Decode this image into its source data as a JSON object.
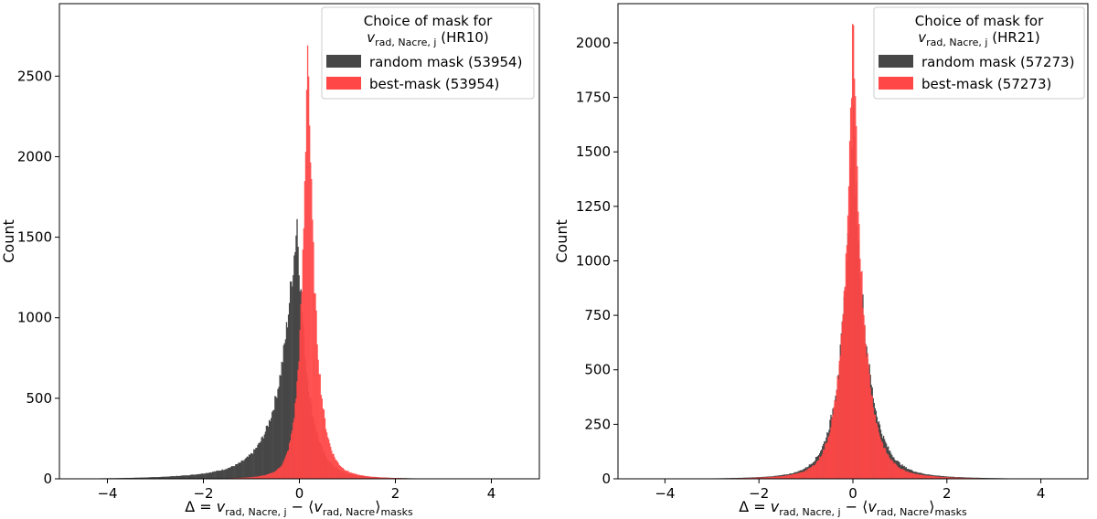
{
  "chart_data": [
    {
      "type": "histogram",
      "xlabel": "Δ = v_rad,Nacre,j − ⟨v_rad,Nacre⟩_masks",
      "ylabel": "Count",
      "xlim": [
        -5,
        5
      ],
      "ylim": [
        0,
        2950
      ],
      "xticks": [
        -4,
        -2,
        0,
        2,
        4
      ],
      "yticks": [
        0,
        500,
        1000,
        1500,
        2000,
        2500
      ],
      "legend": {
        "title_line1": "Choice of mask for",
        "title_line2_var": "v",
        "title_line2_sub": "rad, Nacre, j",
        "title_line2_suffix": "(HR10)",
        "placement": "top-right"
      },
      "series": [
        {
          "name": "random mask (53954)",
          "color": "#474747",
          "center": -0.05,
          "peak": 1610,
          "skew": "left",
          "width_left": 0.3,
          "width_right": 0.22
        },
        {
          "name": "best-mask (53954)",
          "color": "#ff4747",
          "center": 0.17,
          "peak": 2820,
          "skew": "none",
          "width_left": 0.13,
          "width_right": 0.16
        }
      ]
    },
    {
      "type": "histogram",
      "xlabel": "Δ = v_rad,Nacre,j − ⟨v_rad,Nacre⟩_masks",
      "ylabel": "Count",
      "xlim": [
        -5,
        5
      ],
      "ylim": [
        0,
        2180
      ],
      "xticks": [
        -4,
        -2,
        0,
        2,
        4
      ],
      "yticks": [
        0,
        250,
        500,
        750,
        1000,
        1250,
        1500,
        1750,
        2000
      ],
      "legend": {
        "title_line1": "Choice of mask for",
        "title_line2_var": "v",
        "title_line2_sub": "rad, Nacre, j",
        "title_line2_suffix": "(HR21)",
        "placement": "top-right"
      },
      "series": [
        {
          "name": "random mask (57273)",
          "color": "#474747",
          "center": 0.0,
          "peak": 1670,
          "skew": "none",
          "width_left": 0.24,
          "width_right": 0.27
        },
        {
          "name": "best-mask (57273)",
          "color": "#ff4747",
          "center": 0.0,
          "peak": 2060,
          "skew": "none",
          "width_left": 0.2,
          "width_right": 0.22
        }
      ]
    }
  ]
}
